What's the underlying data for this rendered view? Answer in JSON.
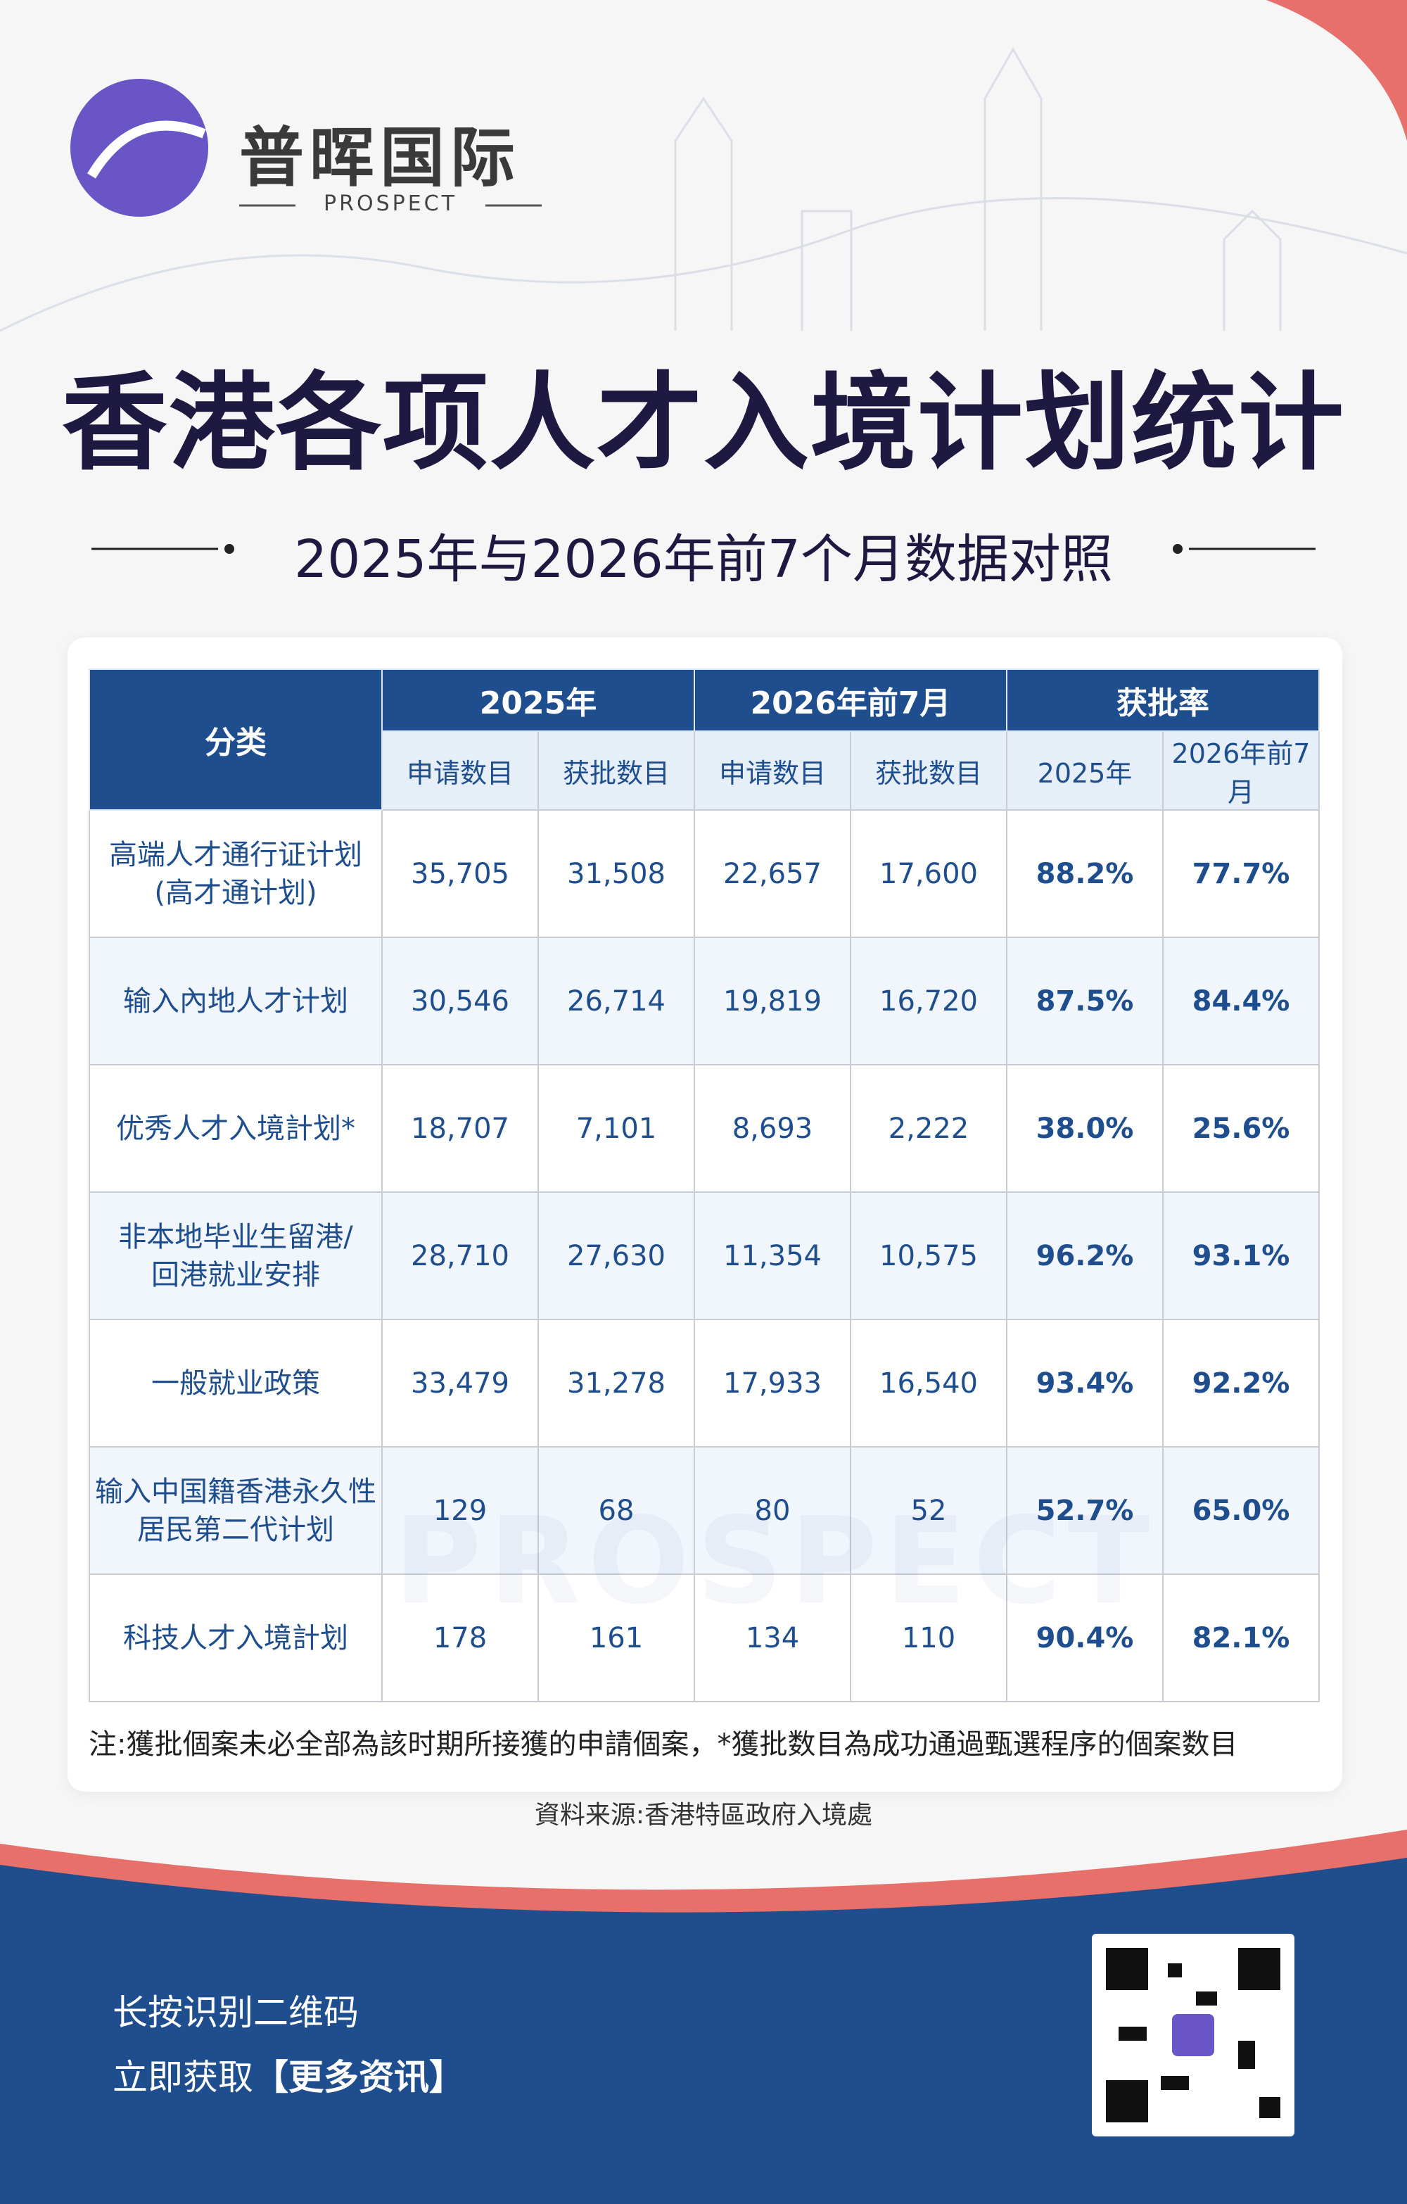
{
  "brand": {
    "name": "普晖国际",
    "sub": "PROSPECT"
  },
  "header": {
    "title": "香港各项人才入境计划统计",
    "subtitle": "2025年与2026年前7个月数据对照"
  },
  "table": {
    "corner": "分类",
    "groups": [
      "2025年",
      "2026年前7月",
      "获批率"
    ],
    "subheaders": [
      "申请数目",
      "获批数目",
      "申请数目",
      "获批数目",
      "2025年",
      "2026年前7月"
    ],
    "rows": [
      [
        "高端人才通行证计划\n(高才通计划)",
        "35,705",
        "31,508",
        "22,657",
        "17,600",
        "88.2%",
        "77.7%"
      ],
      [
        "输入內地人才计划",
        "30,546",
        "26,714",
        "19,819",
        "16,720",
        "87.5%",
        "84.4%"
      ],
      [
        "优秀人才入境計划*",
        "18,707",
        "7,101",
        "8,693",
        "2,222",
        "38.0%",
        "25.6%"
      ],
      [
        "非本地毕业生留港/\n回港就业安排",
        "28,710",
        "27,630",
        "11,354",
        "10,575",
        "96.2%",
        "93.1%"
      ],
      [
        "一般就业政策",
        "33,479",
        "31,278",
        "17,933",
        "16,540",
        "93.4%",
        "92.2%"
      ],
      [
        "输入中国籍香港永久性\n居民第二代计划",
        "129",
        "68",
        "80",
        "52",
        "52.7%",
        "65.0%"
      ],
      [
        "科技人才入境計划",
        "178",
        "161",
        "134",
        "110",
        "90.4%",
        "82.1%"
      ]
    ]
  },
  "watermark": "PROSPECT",
  "note": "注:獲批個案未必全部為該时期所接獲的申請個案，*獲批数目為成功通過甄選程序的個案数目",
  "source": "資料来源:香港特區政府入境處",
  "footer": {
    "line1": "长按识别二维码",
    "line2_prefix": "立即获取",
    "line2_highlight": "【更多资讯】"
  }
}
